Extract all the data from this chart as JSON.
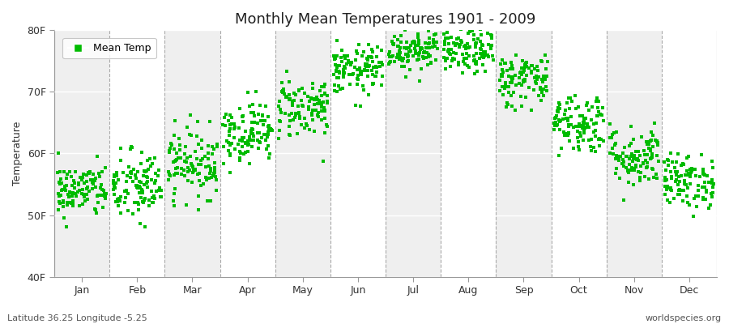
{
  "title": "Monthly Mean Temperatures 1901 - 2009",
  "ylabel": "Temperature",
  "footer_left": "Latitude 36.25 Longitude -5.25",
  "footer_right": "worldspecies.org",
  "legend_label": "Mean Temp",
  "ylim": [
    40,
    80
  ],
  "ytick_labels": [
    "40F",
    "50F",
    "60F",
    "70F",
    "80F"
  ],
  "ytick_values": [
    40,
    50,
    60,
    70,
    80
  ],
  "month_labels": [
    "Jan",
    "Feb",
    "Mar",
    "Apr",
    "May",
    "Jun",
    "Jul",
    "Aug",
    "Sep",
    "Oct",
    "Nov",
    "Dec"
  ],
  "fig_bg_color": "#ffffff",
  "plot_bg_color": "#ffffff",
  "alt_band_color": "#efefef",
  "marker_color": "#00bb00",
  "marker_size": 5,
  "num_years": 109,
  "monthly_mean_F": [
    54.0,
    54.5,
    58.5,
    63.5,
    67.5,
    73.5,
    77.0,
    76.5,
    72.0,
    65.0,
    59.5,
    55.5
  ],
  "monthly_std_F": [
    2.2,
    3.0,
    2.8,
    2.5,
    2.5,
    2.0,
    1.8,
    1.8,
    2.2,
    2.5,
    2.5,
    2.2
  ]
}
